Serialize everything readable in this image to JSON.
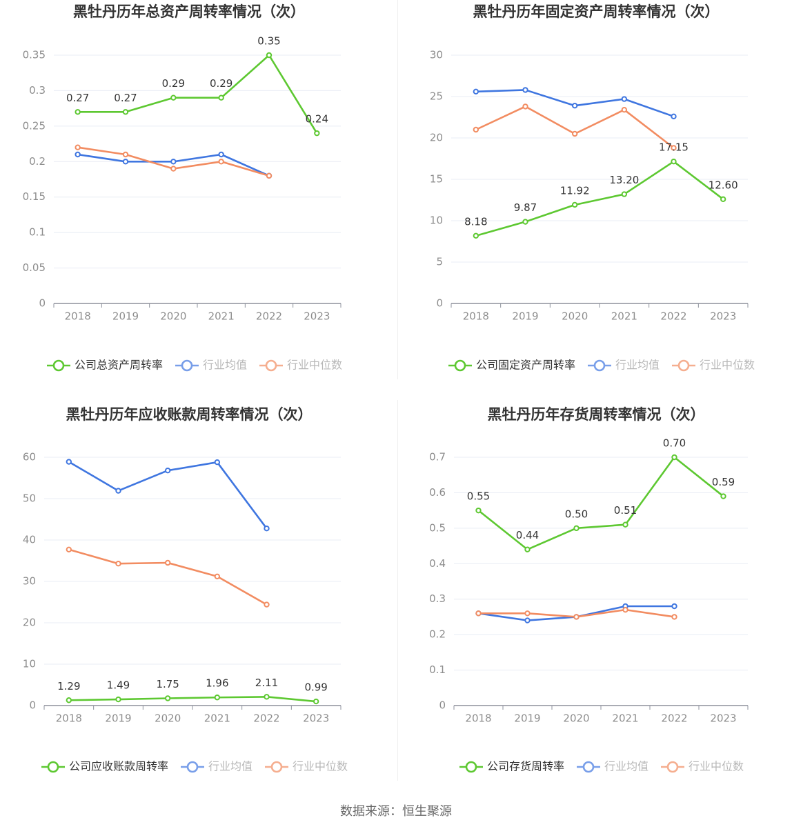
{
  "source": "数据来源：恒生聚源",
  "colors": {
    "company": "#5dc831",
    "avg": "#3f76e0",
    "median": "#f28c61",
    "grid": "#e8ecf4",
    "axis": "#8d919c",
    "label": "#8d8d8d",
    "title": "#333333",
    "value": "#333333"
  },
  "chart_data": [
    {
      "type": "line",
      "title": "黑牡丹历年总资产周转率情况（次）",
      "categories": [
        "2018",
        "2019",
        "2020",
        "2021",
        "2022",
        "2023"
      ],
      "ylim": [
        0,
        0.35
      ],
      "yticks": [
        0,
        0.05,
        0.1,
        0.15,
        0.2,
        0.25,
        0.3,
        0.35
      ],
      "yticklabels": [
        "0",
        "0.05",
        "0.1",
        "0.15",
        "0.2",
        "0.25",
        "0.3",
        "0.35"
      ],
      "grid": true,
      "legend_position": "bottom",
      "series": [
        {
          "name": "公司总资产周转率",
          "role": "company",
          "values": [
            0.27,
            0.27,
            0.29,
            0.29,
            0.35,
            0.24
          ],
          "labels": [
            "0.27",
            "0.27",
            "0.29",
            "0.29",
            "0.35",
            "0.24"
          ]
        },
        {
          "name": "行业均值",
          "role": "avg",
          "values": [
            0.21,
            0.2,
            0.2,
            0.21,
            0.18,
            null
          ]
        },
        {
          "name": "行业中位数",
          "role": "median",
          "values": [
            0.22,
            0.21,
            0.19,
            0.2,
            0.18,
            null
          ]
        }
      ]
    },
    {
      "type": "line",
      "title": "黑牡丹历年固定资产周转率情况（次）",
      "categories": [
        "2018",
        "2019",
        "2020",
        "2021",
        "2022",
        "2023"
      ],
      "ylim": [
        0,
        30
      ],
      "yticks": [
        0,
        5,
        10,
        15,
        20,
        25,
        30
      ],
      "yticklabels": [
        "0",
        "5",
        "10",
        "15",
        "20",
        "25",
        "30"
      ],
      "grid": true,
      "legend_position": "bottom",
      "series": [
        {
          "name": "公司固定资产周转率",
          "role": "company",
          "values": [
            8.18,
            9.87,
            11.92,
            13.2,
            17.15,
            12.6
          ],
          "labels": [
            "8.18",
            "9.87",
            "11.92",
            "13.20",
            "17.15",
            "12.60"
          ]
        },
        {
          "name": "行业均值",
          "role": "avg",
          "values": [
            25.6,
            25.8,
            23.9,
            24.7,
            22.6,
            null
          ]
        },
        {
          "name": "行业中位数",
          "role": "median",
          "values": [
            21.0,
            23.8,
            20.5,
            23.4,
            18.8,
            null
          ]
        }
      ]
    },
    {
      "type": "line",
      "title": "黑牡丹历年应收账款周转率情况（次）",
      "categories": [
        "2018",
        "2019",
        "2020",
        "2021",
        "2022",
        "2023"
      ],
      "ylim": [
        0,
        60
      ],
      "yticks": [
        0,
        10,
        20,
        30,
        40,
        50,
        60
      ],
      "yticklabels": [
        "0",
        "10",
        "20",
        "30",
        "40",
        "50",
        "60"
      ],
      "grid": true,
      "legend_position": "bottom",
      "series": [
        {
          "name": "公司应收账款周转率",
          "role": "company",
          "values": [
            1.29,
            1.49,
            1.75,
            1.96,
            2.11,
            0.99
          ],
          "labels": [
            "1.29",
            "1.49",
            "1.75",
            "1.96",
            "2.11",
            "0.99"
          ]
        },
        {
          "name": "行业均值",
          "role": "avg",
          "values": [
            58.9,
            51.9,
            56.8,
            58.8,
            42.8,
            null
          ]
        },
        {
          "name": "行业中位数",
          "role": "median",
          "values": [
            37.7,
            34.3,
            34.5,
            31.2,
            24.4,
            null
          ]
        }
      ]
    },
    {
      "type": "line",
      "title": "黑牡丹历年存货周转率情况（次）",
      "categories": [
        "2018",
        "2019",
        "2020",
        "2021",
        "2022",
        "2023"
      ],
      "ylim": [
        0,
        0.7
      ],
      "yticks": [
        0,
        0.1,
        0.2,
        0.3,
        0.4,
        0.5,
        0.6,
        0.7
      ],
      "yticklabels": [
        "0",
        "0.1",
        "0.2",
        "0.3",
        "0.4",
        "0.5",
        "0.6",
        "0.7"
      ],
      "grid": true,
      "legend_position": "bottom",
      "series": [
        {
          "name": "公司存货周转率",
          "role": "company",
          "values": [
            0.55,
            0.44,
            0.5,
            0.51,
            0.7,
            0.59
          ],
          "labels": [
            "0.55",
            "0.44",
            "0.50",
            "0.51",
            "0.70",
            "0.59"
          ]
        },
        {
          "name": "行业均值",
          "role": "avg",
          "values": [
            0.26,
            0.24,
            0.25,
            0.28,
            0.28,
            null
          ]
        },
        {
          "name": "行业中位数",
          "role": "median",
          "values": [
            0.26,
            0.26,
            0.25,
            0.27,
            0.25,
            null
          ]
        }
      ]
    }
  ]
}
